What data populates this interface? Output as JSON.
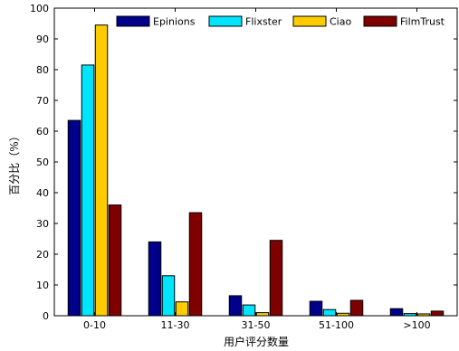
{
  "chart_data": {
    "type": "bar",
    "title": "",
    "xlabel": "用户评分数量",
    "ylabel": "百分比（%）",
    "ylim": [
      0,
      100
    ],
    "yticks": [
      0,
      10,
      20,
      30,
      40,
      50,
      60,
      70,
      80,
      90,
      100
    ],
    "categories": [
      "0-10",
      "11-30",
      "31-50",
      "51-100",
      ">100"
    ],
    "grid": false,
    "legend_position": "top",
    "series": [
      {
        "name": "Epinions",
        "color": "#00008B",
        "values": [
          63.5,
          24.0,
          6.5,
          4.7,
          2.3
        ]
      },
      {
        "name": "Flixster",
        "color": "#00E5FF",
        "values": [
          81.5,
          13.0,
          3.5,
          2.0,
          0.7
        ]
      },
      {
        "name": "Ciao",
        "color": "#FFCC00",
        "values": [
          94.5,
          4.5,
          1.0,
          0.8,
          0.6
        ]
      },
      {
        "name": "FilmTrust",
        "color": "#7F0000",
        "values": [
          36.0,
          33.5,
          24.5,
          5.0,
          1.5
        ]
      }
    ]
  }
}
